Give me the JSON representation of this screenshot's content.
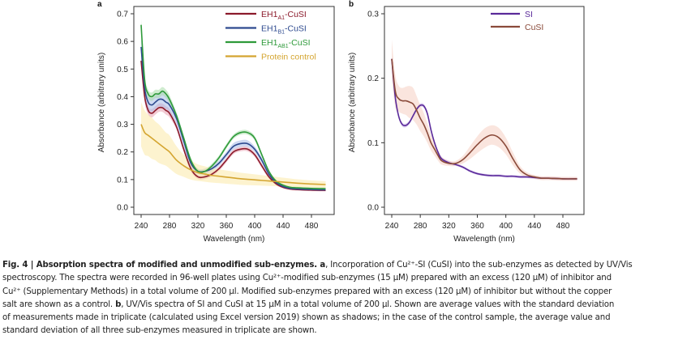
{
  "chart_data": [
    {
      "panel": "a",
      "type": "line",
      "title": "",
      "xlabel": "Wavelength (nm)",
      "ylabel": "Absorbance (arbitrary units)",
      "xlim": [
        240,
        500
      ],
      "ylim": [
        -0.02,
        0.72
      ],
      "xticks": [
        240,
        280,
        320,
        360,
        400,
        440,
        480
      ],
      "yticks": [
        0.0,
        0.1,
        0.2,
        0.3,
        0.4,
        0.5,
        0.6,
        0.7
      ],
      "ytick_labels": [
        "0.0",
        "0.1",
        "0.2",
        "0.3",
        "0.4",
        "0.5",
        "0.6",
        "0.7"
      ],
      "grid": false,
      "legend_position": "top-right",
      "x": [
        240,
        245,
        250,
        255,
        260,
        265,
        270,
        275,
        280,
        290,
        300,
        310,
        320,
        330,
        340,
        350,
        360,
        370,
        380,
        390,
        400,
        410,
        420,
        430,
        440,
        450,
        460,
        480,
        500
      ],
      "series": [
        {
          "name": "EH1A1-CuSI",
          "name_main": "EH1",
          "name_sub": "A1",
          "name_suffix": "-CuSI",
          "color": "#8b1a2b",
          "band_color": "#e8a0b0",
          "values": [
            0.53,
            0.4,
            0.35,
            0.34,
            0.35,
            0.36,
            0.36,
            0.35,
            0.34,
            0.29,
            0.21,
            0.14,
            0.11,
            0.11,
            0.12,
            0.14,
            0.17,
            0.2,
            0.21,
            0.21,
            0.19,
            0.15,
            0.11,
            0.085,
            0.072,
            0.066,
            0.064,
            0.062,
            0.061
          ],
          "sd": [
            0.02,
            0.02,
            0.015,
            0.015,
            0.015,
            0.015,
            0.015,
            0.015,
            0.015,
            0.01,
            0.01,
            0.01,
            0.008,
            0.008,
            0.008,
            0.008,
            0.008,
            0.008,
            0.008,
            0.008,
            0.008,
            0.008,
            0.006,
            0.005,
            0.004,
            0.004,
            0.004,
            0.004,
            0.004
          ]
        },
        {
          "name": "EH1B1-CuSI",
          "name_main": "EH1",
          "name_sub": "B1",
          "name_suffix": "-CuSI",
          "color": "#2e4a8f",
          "band_color": "#a8bce8",
          "values": [
            0.58,
            0.43,
            0.38,
            0.37,
            0.38,
            0.39,
            0.39,
            0.38,
            0.37,
            0.32,
            0.24,
            0.16,
            0.13,
            0.13,
            0.14,
            0.16,
            0.19,
            0.22,
            0.23,
            0.23,
            0.21,
            0.17,
            0.12,
            0.09,
            0.075,
            0.068,
            0.066,
            0.064,
            0.063
          ],
          "sd": [
            0.03,
            0.03,
            0.025,
            0.025,
            0.025,
            0.025,
            0.03,
            0.025,
            0.025,
            0.02,
            0.02,
            0.015,
            0.01,
            0.01,
            0.01,
            0.01,
            0.01,
            0.012,
            0.012,
            0.012,
            0.01,
            0.01,
            0.008,
            0.006,
            0.005,
            0.004,
            0.004,
            0.004,
            0.004
          ]
        },
        {
          "name": "EH1AB1-CuSI",
          "name_main": "EH1",
          "name_sub": "AB1",
          "name_suffix": "-CuSI",
          "color": "#2e9a3a",
          "band_color": "#a8dca8",
          "values": [
            0.66,
            0.46,
            0.41,
            0.4,
            0.41,
            0.41,
            0.42,
            0.41,
            0.39,
            0.33,
            0.25,
            0.17,
            0.13,
            0.13,
            0.15,
            0.18,
            0.22,
            0.255,
            0.27,
            0.27,
            0.25,
            0.19,
            0.13,
            0.095,
            0.08,
            0.072,
            0.07,
            0.068,
            0.067
          ],
          "sd": [
            0.02,
            0.02,
            0.015,
            0.015,
            0.015,
            0.015,
            0.015,
            0.015,
            0.015,
            0.01,
            0.01,
            0.01,
            0.008,
            0.008,
            0.008,
            0.008,
            0.008,
            0.008,
            0.008,
            0.008,
            0.008,
            0.008,
            0.006,
            0.005,
            0.004,
            0.004,
            0.004,
            0.004,
            0.004
          ]
        },
        {
          "name": "Protein control",
          "color": "#d4a530",
          "band_color": "#fbe9a8",
          "values": [
            0.3,
            0.27,
            0.26,
            0.25,
            0.24,
            0.23,
            0.22,
            0.21,
            0.2,
            0.17,
            0.15,
            0.135,
            0.125,
            0.12,
            0.115,
            0.112,
            0.109,
            0.106,
            0.103,
            0.101,
            0.099,
            0.097,
            0.095,
            0.093,
            0.091,
            0.089,
            0.087,
            0.084,
            0.082
          ],
          "sd": [
            0.08,
            0.08,
            0.075,
            0.075,
            0.07,
            0.07,
            0.065,
            0.06,
            0.06,
            0.05,
            0.04,
            0.035,
            0.03,
            0.028,
            0.026,
            0.025,
            0.024,
            0.023,
            0.022,
            0.021,
            0.02,
            0.019,
            0.018,
            0.017,
            0.016,
            0.015,
            0.014,
            0.013,
            0.012
          ]
        }
      ]
    },
    {
      "panel": "b",
      "type": "line",
      "title": "",
      "xlabel": "Wavelength (nm)",
      "ylabel": "Absorbance (arbitrary units)",
      "xlim": [
        240,
        500
      ],
      "ylim": [
        -0.004,
        0.31
      ],
      "xticks": [
        240,
        280,
        320,
        360,
        400,
        440,
        480
      ],
      "yticks": [
        0.0,
        0.1,
        0.2,
        0.3
      ],
      "ytick_labels": [
        "0.0",
        "0.1",
        "0.2",
        "0.3"
      ],
      "grid": false,
      "legend_position": "top-right",
      "x": [
        240,
        245,
        250,
        255,
        260,
        265,
        270,
        275,
        280,
        285,
        290,
        295,
        300,
        305,
        310,
        320,
        330,
        340,
        350,
        360,
        370,
        380,
        390,
        400,
        410,
        420,
        430,
        440,
        450,
        460,
        480,
        500
      ],
      "series": [
        {
          "name": "SI",
          "color": "#5a2a9a",
          "band_color": "#c8b0e8",
          "values": [
            0.23,
            0.17,
            0.14,
            0.128,
            0.127,
            0.132,
            0.142,
            0.152,
            0.158,
            0.157,
            0.145,
            0.12,
            0.1,
            0.085,
            0.075,
            0.069,
            0.066,
            0.062,
            0.056,
            0.052,
            0.05,
            0.049,
            0.049,
            0.048,
            0.048,
            0.047,
            0.047,
            0.046,
            0.045,
            0.045,
            0.044,
            0.044
          ],
          "sd": [
            0.003,
            0.003,
            0.003,
            0.003,
            0.003,
            0.003,
            0.003,
            0.003,
            0.003,
            0.003,
            0.003,
            0.003,
            0.003,
            0.003,
            0.003,
            0.003,
            0.002,
            0.002,
            0.002,
            0.002,
            0.002,
            0.002,
            0.002,
            0.002,
            0.002,
            0.002,
            0.002,
            0.002,
            0.002,
            0.002,
            0.002,
            0.002
          ]
        },
        {
          "name": "CuSI",
          "color": "#8a4a3a",
          "band_color": "#f5cfc2",
          "values": [
            0.23,
            0.18,
            0.168,
            0.165,
            0.165,
            0.163,
            0.16,
            0.15,
            0.138,
            0.128,
            0.115,
            0.1,
            0.09,
            0.08,
            0.072,
            0.068,
            0.068,
            0.074,
            0.085,
            0.097,
            0.107,
            0.112,
            0.108,
            0.095,
            0.075,
            0.058,
            0.05,
            0.047,
            0.045,
            0.045,
            0.044,
            0.044
          ],
          "sd": [
            0.03,
            0.025,
            0.02,
            0.02,
            0.022,
            0.025,
            0.025,
            0.022,
            0.02,
            0.018,
            0.015,
            0.012,
            0.01,
            0.008,
            0.006,
            0.004,
            0.004,
            0.006,
            0.01,
            0.013,
            0.015,
            0.015,
            0.015,
            0.013,
            0.01,
            0.006,
            0.004,
            0.003,
            0.003,
            0.003,
            0.003,
            0.003
          ]
        }
      ]
    }
  ],
  "caption": {
    "fig_label": "Fig. 4 | Absorption spectra of modified and unmodified sub-enzymes.",
    "lines": [
      [
        {
          "b": "a"
        },
        {
          "t": ", Incorporation of Cu²⁺-SI (CuSI) into the sub-enzymes as detected by UV/Vis"
        }
      ],
      [
        {
          "t": "spectroscopy. The spectra were recorded in 96-well plates using Cu²⁺-modified sub-enzymes (15 µM) prepared with an excess (120 µM) of inhibitor and"
        }
      ],
      [
        {
          "t": "Cu²⁺ (Supplementary Methods) in a total volume of 200 µl. Modified sub-enzymes prepared with an excess (120 µM) of inhibitor but without the copper"
        }
      ],
      [
        {
          "t": "salt are shown as a control. "
        },
        {
          "b": "b"
        },
        {
          "t": ", UV/Vis spectra of SI and CuSI at 15 µM in a total volume of 200 µl. Shown are average values with the standard deviation"
        }
      ],
      [
        {
          "t": "of measurements made in triplicate (calculated using Excel version 2019) shown as shadows; in the case of the control sample, the average value and"
        }
      ],
      [
        {
          "t": "standard deviation of all three sub-enzymes measured in triplicate are shown."
        }
      ]
    ]
  }
}
